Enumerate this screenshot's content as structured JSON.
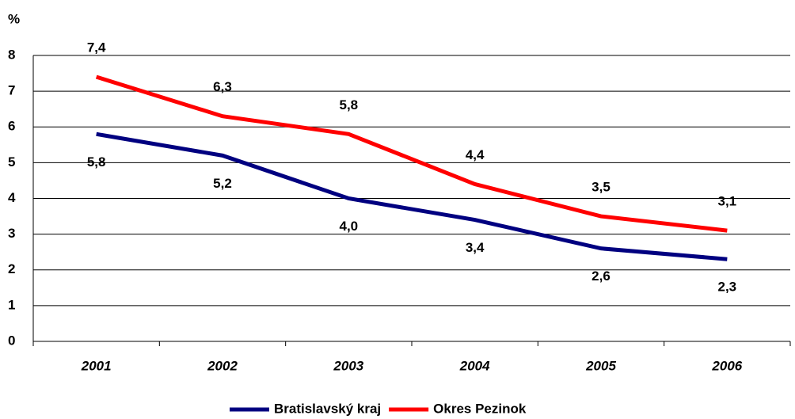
{
  "chart_data": {
    "type": "line",
    "ylabel": "%",
    "categories": [
      "2001",
      "2002",
      "2003",
      "2004",
      "2005",
      "2006"
    ],
    "series": [
      {
        "name": "Bratislavský kraj",
        "color": "#000080",
        "values": [
          5.8,
          5.2,
          4.0,
          3.4,
          2.6,
          2.3
        ],
        "value_labels": [
          "5,8",
          "5,2",
          "4,0",
          "3,4",
          "2,6",
          "2,3"
        ]
      },
      {
        "name": "Okres Pezinok",
        "color": "#ff0000",
        "values": [
          7.4,
          6.3,
          5.8,
          4.4,
          3.5,
          3.1
        ],
        "value_labels": [
          "7,4",
          "6,3",
          "5,8",
          "4,4",
          "3,5",
          "3,1"
        ]
      }
    ],
    "ylim": [
      0,
      8
    ],
    "yticks": [
      0,
      1,
      2,
      3,
      4,
      5,
      6,
      7,
      8
    ],
    "grid": true,
    "legend": "bottom"
  }
}
